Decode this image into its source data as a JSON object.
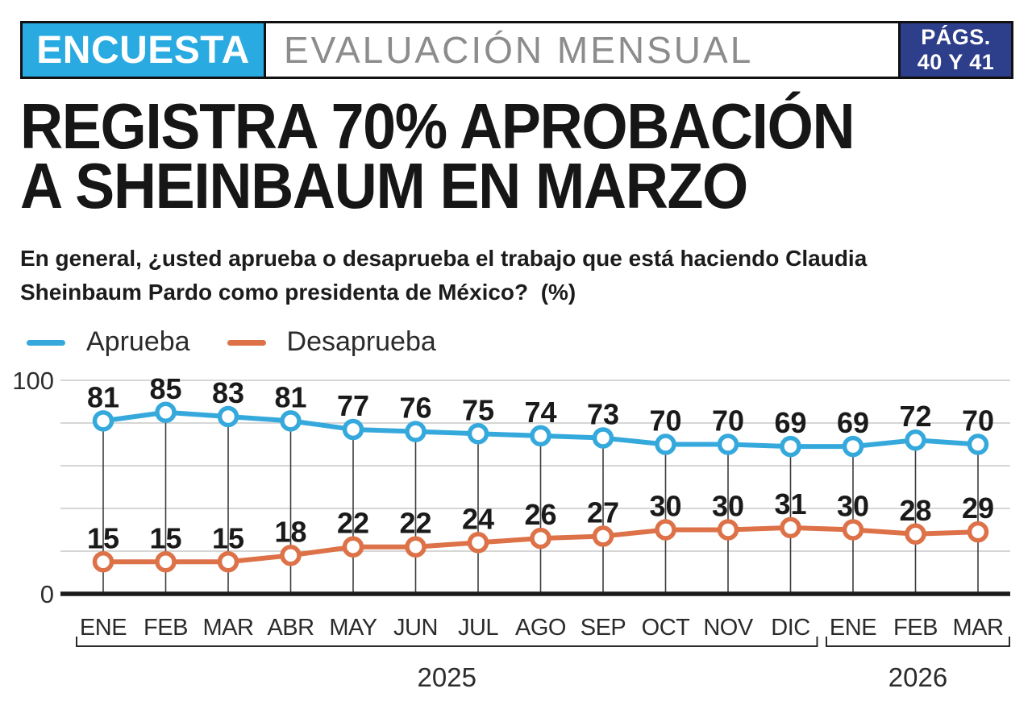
{
  "header": {
    "badge": "ENCUESTA",
    "section": "EVALUACIÓN MENSUAL",
    "pages_line1": "PÁGS.",
    "pages_line2": "40 Y 41"
  },
  "headline": {
    "line1": "REGISTRA 70% APROBACIÓN",
    "line2": "A SHEINBAUM EN MARZO"
  },
  "question": {
    "line1": "En general, ¿usted aprueba o desaprueba el trabajo que está haciendo Claudia",
    "line2": "Sheinbaum Pardo como presidenta de México?  (%)"
  },
  "legend": [
    {
      "label": "Aprueba",
      "color": "#36a9dc"
    },
    {
      "label": "Desaprueba",
      "color": "#dd7148"
    }
  ],
  "colors": {
    "badge_blue": "#29abe2",
    "navy": "#2d3e8a",
    "approve": "#36a9dc",
    "disapprove": "#dd7148",
    "grid": "#c9c9c9",
    "axis": "#1a1a1a",
    "drop_line": "#3d3d3d"
  },
  "chart_data": {
    "type": "line",
    "title": "REGISTRA 70% APROBACIÓN A SHEINBAUM EN MARZO",
    "subtitle": "En general, ¿usted aprueba o desaprueba el trabajo que está haciendo Claudia Sheinbaum Pardo como presidenta de México? (%)",
    "categories": [
      "ENE",
      "FEB",
      "MAR",
      "ABR",
      "MAY",
      "JUN",
      "JUL",
      "AGO",
      "SEP",
      "OCT",
      "NOV",
      "DIC",
      "ENE",
      "FEB",
      "MAR"
    ],
    "year_groups": [
      {
        "label": "2025",
        "from": 0,
        "to": 11
      },
      {
        "label": "2026",
        "from": 12,
        "to": 14
      }
    ],
    "series": [
      {
        "name": "Aprueba",
        "color": "#36a9dc",
        "values": [
          81,
          85,
          83,
          81,
          77,
          76,
          75,
          74,
          73,
          70,
          70,
          69,
          69,
          72,
          70
        ]
      },
      {
        "name": "Desaprueba",
        "color": "#dd7148",
        "values": [
          15,
          15,
          15,
          18,
          22,
          22,
          24,
          26,
          27,
          30,
          30,
          31,
          30,
          28,
          29
        ]
      }
    ],
    "ylim": [
      0,
      100
    ],
    "yticks_labeled": [
      0,
      100
    ],
    "gridline_values": [
      20,
      40,
      60,
      80,
      100
    ],
    "grid": true,
    "legend_position": "top-left",
    "point_labels": true
  }
}
